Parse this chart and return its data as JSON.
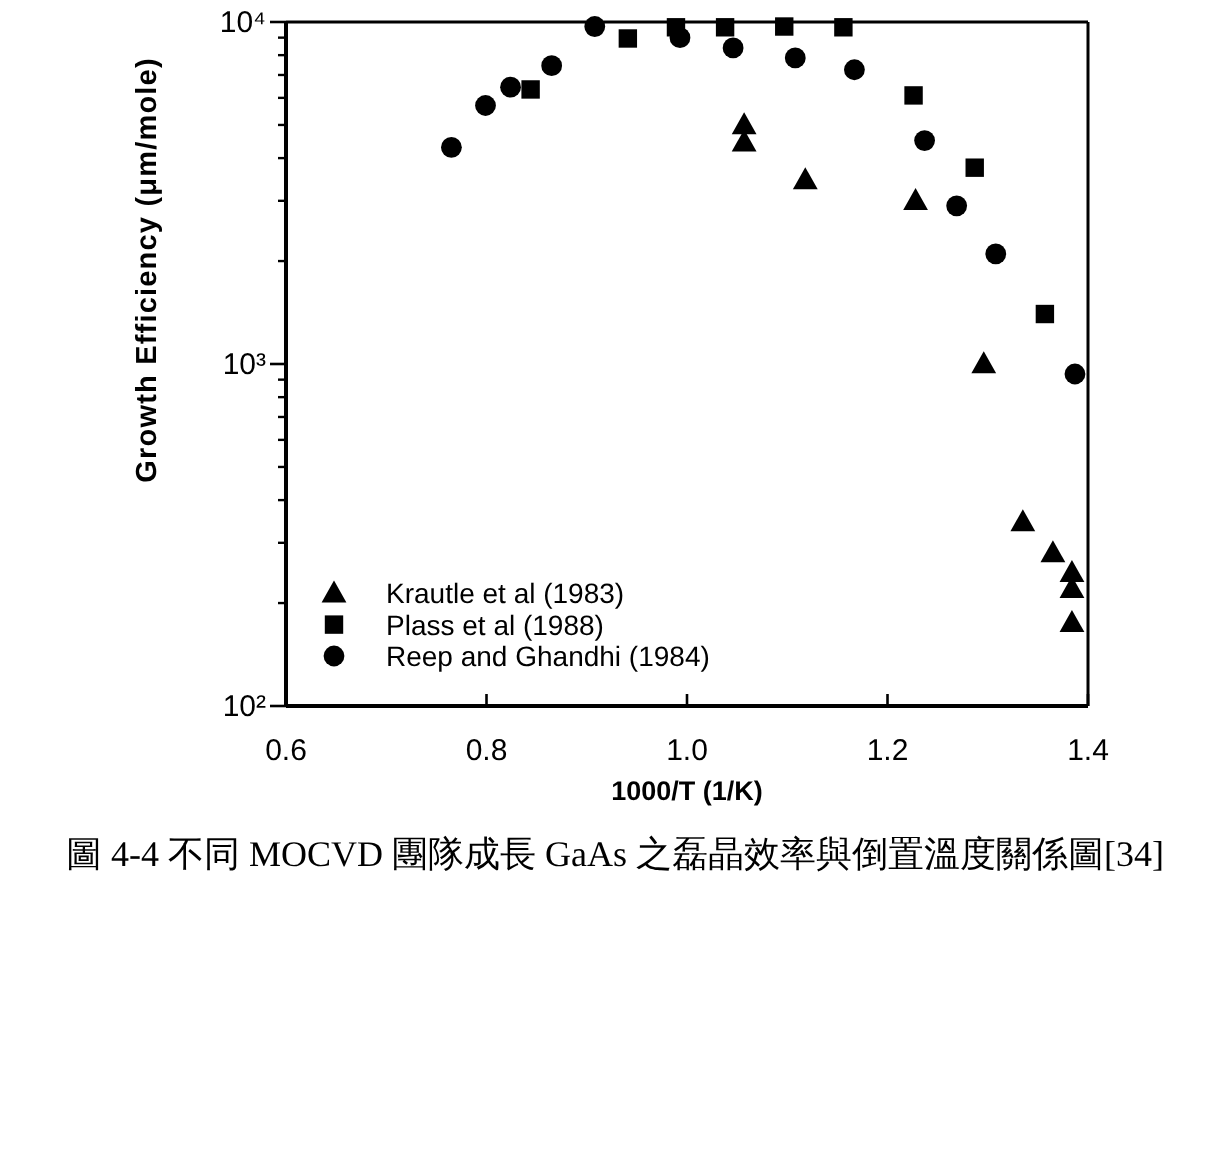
{
  "chart_data": {
    "type": "scatter",
    "xlabel": "1000/T (1/K)",
    "ylabel": "Growth Efficiency (μm/mole)",
    "xlim": [
      0.6,
      1.4
    ],
    "xticks": [
      0.6,
      0.8,
      {
        "value": 1,
        "label": "1.0"
      },
      1.2,
      1.4
    ],
    "ylim": [
      100,
      10000
    ],
    "yticks": [
      {
        "value": 100,
        "label": "10²"
      },
      {
        "value": 1000,
        "label": "10³"
      },
      {
        "value": 10000,
        "label": "10⁴"
      }
    ],
    "log": true,
    "legend": "bottom left",
    "series": [
      {
        "name": "Krautle et al (1983)",
        "color": "#000000",
        "marker": "triangle",
        "x": [
          1.057,
          1.057,
          1.118,
          1.228,
          1.296,
          1.335,
          1.365,
          1.384,
          1.384,
          1.384
        ],
        "values": [
          5000,
          4450,
          3450,
          3000,
          1000,
          345,
          280,
          245,
          220,
          175
        ]
      },
      {
        "name": "Plass et al (1988)",
        "color": "#000000",
        "marker": "square",
        "x": [
          0.844,
          0.941,
          0.989,
          1.038,
          1.097,
          1.156,
          1.226,
          1.287,
          1.357
        ],
        "values": [
          6350,
          8950,
          9650,
          9650,
          9700,
          9650,
          6100,
          3750,
          1400
        ]
      },
      {
        "name": "Reep and Ghandhi (1984)",
        "color": "#000000",
        "marker": "circle",
        "x": [
          0.765,
          0.799,
          0.824,
          0.865,
          0.908,
          0.993,
          1.046,
          1.108,
          1.167,
          1.237,
          1.269,
          1.308,
          1.387
        ],
        "values": [
          4300,
          5700,
          6450,
          7450,
          9700,
          9000,
          8400,
          7850,
          7250,
          4500,
          2900,
          2100,
          935
        ]
      }
    ],
    "annotations": [
      "圖 4-4 不同 MOCVD 團隊成長 GaAs 之磊晶效率與倒置溫度關係圖[34]"
    ]
  }
}
